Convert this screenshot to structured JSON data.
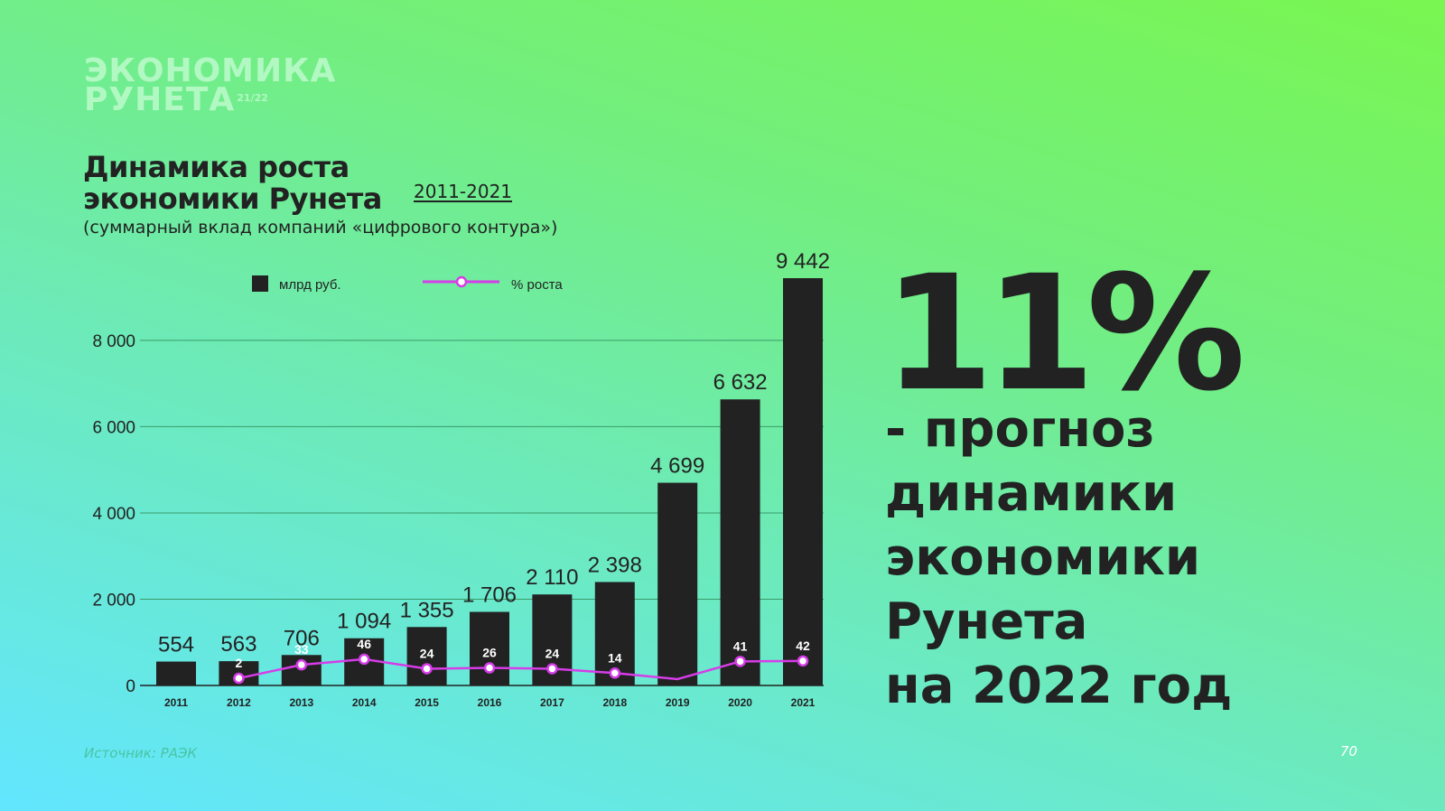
{
  "logo": {
    "line1": "ЭКОНОМИКА",
    "line2": "РУНЕТА",
    "year": "21/22"
  },
  "title": {
    "line1": "Динамика роста",
    "line2": "экономики Рунета",
    "range": "2011-2021"
  },
  "subtitle": "(суммарный вклад компаний «цифрового контура»)",
  "headline": {
    "percent": "11%",
    "lines": [
      "- прогноз",
      "динамики",
      "экономики",
      "Рунета",
      "на 2022 год"
    ]
  },
  "source": "Источник: РАЭК",
  "page_number": "70",
  "colors": {
    "bars": "#222222",
    "growth_line": "#d63ce8",
    "gridline": "#3a9b6a",
    "logo": "#b2f8c2"
  },
  "chart_data": {
    "type": "bar",
    "categories": [
      "2011",
      "2012",
      "2013",
      "2014",
      "2015",
      "2016",
      "2017",
      "2018",
      "2019",
      "2020",
      "2021"
    ],
    "ylim": [
      0,
      9500
    ],
    "yticks": [
      0,
      2000,
      4000,
      6000,
      8000
    ],
    "ytick_labels": [
      "0",
      "2 000",
      "4 000",
      "6 000",
      "8 000"
    ],
    "grid": true,
    "legend_placement": "top",
    "series": [
      {
        "name": "млрд руб.",
        "type": "bar",
        "values": [
          554,
          563,
          706,
          1094,
          1355,
          1706,
          2110,
          2398,
          4699,
          6632,
          9442
        ],
        "labels": [
          "554",
          "563",
          "706",
          "1 094",
          "1 355",
          "1 706",
          "2 110",
          "2 398",
          "4 699",
          "6 632",
          "9 442"
        ]
      },
      {
        "name": "% роста",
        "type": "line",
        "values": [
          null,
          2,
          33,
          46,
          24,
          26,
          24,
          14,
          0,
          41,
          42
        ],
        "labels": [
          "",
          "2",
          "33",
          "46",
          "24",
          "26",
          "24",
          "14",
          "",
          "41",
          "42"
        ]
      }
    ]
  }
}
